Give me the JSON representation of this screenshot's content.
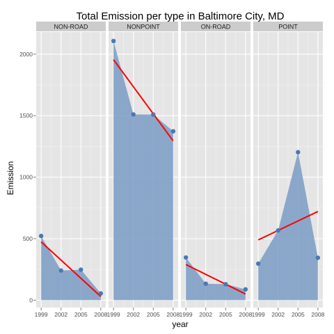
{
  "chart_data": {
    "type": "area",
    "title": "Total Emission per type in Baltimore City, MD",
    "xlabel": "year",
    "ylabel": "Emission",
    "x": [
      1999,
      2002,
      2005,
      2008
    ],
    "x_tick_labels": [
      "1999",
      "2002",
      "2005",
      "2008"
    ],
    "ylim": [
      -60,
      2180
    ],
    "y_ticks": [
      0,
      500,
      1000,
      1500,
      2000
    ],
    "y_tick_labels": [
      "0",
      "500",
      "1000",
      "1500",
      "2000"
    ],
    "grid": true,
    "facets": [
      {
        "label": "NON-ROAD",
        "values": [
          522,
          241,
          248,
          55
        ],
        "trend": [
          474,
          326,
          178,
          30
        ]
      },
      {
        "label": "NONPOINT",
        "values": [
          2107,
          1510,
          1509,
          1373
        ],
        "trend": [
          1955,
          1735,
          1515,
          1295
        ]
      },
      {
        "label": "ON-ROAD",
        "values": [
          347,
          134,
          130,
          88
        ],
        "trend": [
          290,
          210,
          130,
          50
        ]
      },
      {
        "label": "POINT",
        "values": [
          297,
          567,
          1203,
          345
        ],
        "trend": [
          490,
          567,
          644,
          721
        ]
      }
    ],
    "colors": {
      "panel_bg": "#e5e5e5",
      "strip_bg": "#cccccc",
      "grid_major": "#ffffff",
      "grid_minor": "#f2f2f2",
      "area_fill": "#7a9cc6",
      "point": "#4a78b2",
      "trend": "#ff0000"
    }
  }
}
